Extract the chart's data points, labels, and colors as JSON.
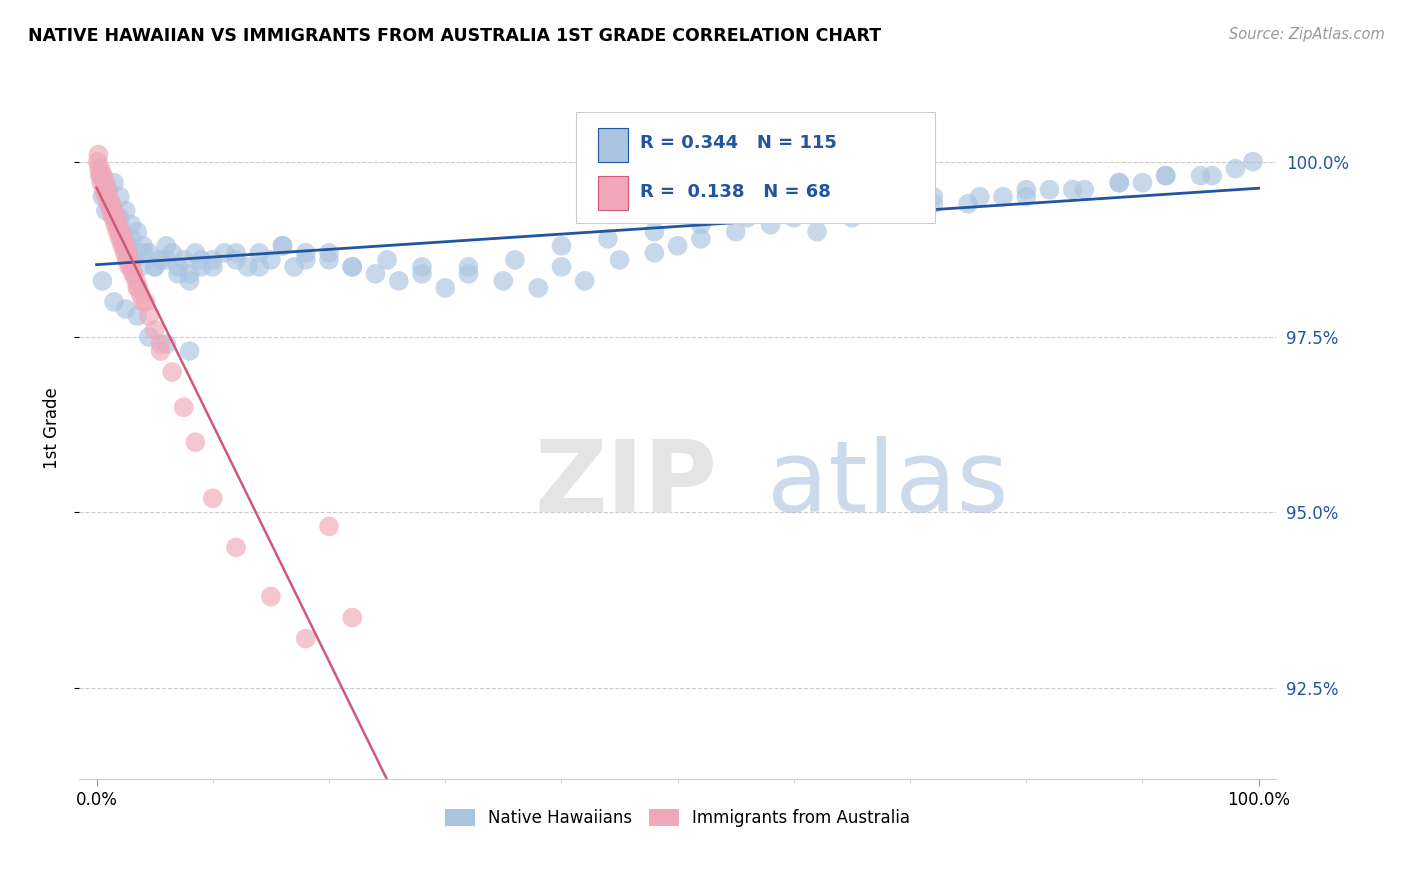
{
  "title": "NATIVE HAWAIIAN VS IMMIGRANTS FROM AUSTRALIA 1ST GRADE CORRELATION CHART",
  "source": "Source: ZipAtlas.com",
  "ylabel": "1st Grade",
  "r_blue": 0.344,
  "n_blue": 115,
  "r_pink": 0.138,
  "n_pink": 68,
  "blue_color": "#aac4e0",
  "pink_color": "#f0a8b8",
  "blue_line_color": "#2255a0",
  "pink_line_color": "#d05878",
  "watermark_zip": "ZIP",
  "watermark_atlas": "atlas",
  "yticks": [
    92.5,
    95.0,
    97.5,
    100.0
  ],
  "ymin": 91.2,
  "ymax": 101.2,
  "xmin": -1.5,
  "xmax": 101.5,
  "blue_scatter_x": [
    0.3,
    0.5,
    0.8,
    1.0,
    1.2,
    1.5,
    1.8,
    2.0,
    2.2,
    2.5,
    2.8,
    3.0,
    3.2,
    3.5,
    3.8,
    4.0,
    4.5,
    5.0,
    5.5,
    6.0,
    6.5,
    7.0,
    7.5,
    8.0,
    8.5,
    9.0,
    10.0,
    11.0,
    12.0,
    13.0,
    14.0,
    15.0,
    16.0,
    17.0,
    18.0,
    20.0,
    22.0,
    24.0,
    26.0,
    28.0,
    30.0,
    32.0,
    35.0,
    38.0,
    40.0,
    42.0,
    45.0,
    48.0,
    50.0,
    52.0,
    55.0,
    58.0,
    60.0,
    62.0,
    65.0,
    68.0,
    70.0,
    72.0,
    75.0,
    78.0,
    80.0,
    82.0,
    85.0,
    88.0,
    90.0,
    92.0,
    95.0,
    98.0,
    99.5,
    1.0,
    2.0,
    3.0,
    4.0,
    5.0,
    6.0,
    7.0,
    8.0,
    9.0,
    10.0,
    12.0,
    14.0,
    16.0,
    18.0,
    20.0,
    22.0,
    25.0,
    28.0,
    32.0,
    36.0,
    40.0,
    44.0,
    48.0,
    52.0,
    56.0,
    60.0,
    64.0,
    68.0,
    72.0,
    76.0,
    80.0,
    84.0,
    88.0,
    92.0,
    96.0,
    0.5,
    1.5,
    2.5,
    3.5,
    4.5,
    6.0,
    8.0
  ],
  "blue_scatter_y": [
    99.8,
    99.5,
    99.3,
    99.6,
    99.4,
    99.7,
    99.2,
    99.5,
    99.0,
    99.3,
    98.8,
    99.1,
    98.6,
    99.0,
    98.5,
    98.8,
    98.7,
    98.5,
    98.6,
    98.8,
    98.7,
    98.5,
    98.6,
    98.4,
    98.7,
    98.6,
    98.5,
    98.7,
    98.6,
    98.5,
    98.7,
    98.6,
    98.8,
    98.5,
    98.7,
    98.6,
    98.5,
    98.4,
    98.3,
    98.5,
    98.2,
    98.4,
    98.3,
    98.2,
    98.5,
    98.3,
    98.6,
    98.7,
    98.8,
    98.9,
    99.0,
    99.1,
    99.2,
    99.0,
    99.2,
    99.3,
    99.3,
    99.4,
    99.4,
    99.5,
    99.5,
    99.6,
    99.6,
    99.7,
    99.7,
    99.8,
    99.8,
    99.9,
    100.0,
    99.4,
    99.2,
    98.9,
    98.7,
    98.5,
    98.6,
    98.4,
    98.3,
    98.5,
    98.6,
    98.7,
    98.5,
    98.8,
    98.6,
    98.7,
    98.5,
    98.6,
    98.4,
    98.5,
    98.6,
    98.8,
    98.9,
    99.0,
    99.1,
    99.2,
    99.3,
    99.3,
    99.4,
    99.5,
    99.5,
    99.6,
    99.6,
    99.7,
    99.8,
    99.8,
    98.3,
    98.0,
    97.9,
    97.8,
    97.5,
    97.4,
    97.3
  ],
  "pink_scatter_x": [
    0.1,
    0.2,
    0.3,
    0.4,
    0.5,
    0.6,
    0.7,
    0.8,
    0.9,
    1.0,
    1.1,
    1.2,
    1.3,
    1.4,
    1.5,
    1.6,
    1.7,
    1.8,
    1.9,
    2.0,
    2.1,
    2.2,
    2.3,
    2.4,
    2.5,
    2.6,
    2.7,
    2.8,
    2.9,
    3.0,
    3.2,
    3.4,
    3.6,
    3.8,
    4.0,
    4.5,
    5.0,
    5.5,
    0.15,
    0.35,
    0.55,
    0.75,
    0.95,
    1.15,
    1.35,
    1.55,
    1.75,
    1.95,
    2.15,
    2.35,
    2.55,
    2.75,
    2.95,
    3.15,
    3.5,
    4.2,
    5.5,
    6.5,
    7.5,
    8.5,
    10.0,
    12.0,
    15.0,
    18.0,
    20.0,
    22.0
  ],
  "pink_scatter_y": [
    100.0,
    99.9,
    99.8,
    99.7,
    99.8,
    99.6,
    99.7,
    99.5,
    99.6,
    99.5,
    99.4,
    99.3,
    99.4,
    99.2,
    99.3,
    99.1,
    99.2,
    99.0,
    99.1,
    98.9,
    99.0,
    98.8,
    98.9,
    98.7,
    98.8,
    98.6,
    98.7,
    98.5,
    98.6,
    98.5,
    98.4,
    98.3,
    98.2,
    98.1,
    98.0,
    97.8,
    97.6,
    97.4,
    100.1,
    99.9,
    99.8,
    99.7,
    99.5,
    99.4,
    99.3,
    99.2,
    99.1,
    99.0,
    98.9,
    98.8,
    98.7,
    98.6,
    98.5,
    98.4,
    98.2,
    98.0,
    97.3,
    97.0,
    96.5,
    96.0,
    95.2,
    94.5,
    93.8,
    93.2,
    94.8,
    93.5
  ]
}
